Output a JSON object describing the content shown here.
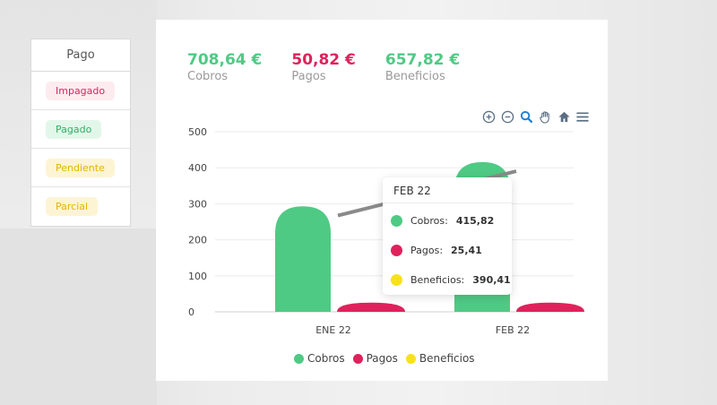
{
  "colors": {
    "green": "#4fca84",
    "red": "#e0225c",
    "yellow": "#f7e21a",
    "line": "#8a8a8a"
  },
  "status": {
    "header": "Pago",
    "items": [
      {
        "label": "Impagado",
        "fg": "#e0225c",
        "bg": "#fdebef"
      },
      {
        "label": "Pagado",
        "fg": "#2fb064",
        "bg": "#e2f7ea"
      },
      {
        "label": "Pendiente",
        "fg": "#e6b400",
        "bg": "#fdf4d4"
      },
      {
        "label": "Parcial",
        "fg": "#e6b400",
        "bg": "#fdf4d4"
      }
    ]
  },
  "kpis": [
    {
      "value": "708,64 €",
      "label": "Cobros",
      "color": "#4fca84"
    },
    {
      "value": "50,82 €",
      "label": "Pagos",
      "color": "#e0225c"
    },
    {
      "value": "657,82 €",
      "label": "Beneficios",
      "color": "#4fca84"
    }
  ],
  "toolbar": [
    "zoom-in-icon",
    "zoom-out-icon",
    "zoom-select-icon",
    "pan-hand-icon",
    "home-icon",
    "menu-icon"
  ],
  "tooltip": {
    "title": "FEB 22",
    "rows": [
      {
        "label": "Cobros:",
        "value": "415,82",
        "color": "#4fca84"
      },
      {
        "label": "Pagos:",
        "value": "25,41",
        "color": "#e0225c"
      },
      {
        "label": "Beneficios:",
        "value": "390,41",
        "color": "#f7e21a"
      }
    ]
  },
  "chart_data": {
    "type": "bar",
    "categories": [
      "ENE 22",
      "FEB 22"
    ],
    "series": [
      {
        "name": "Cobros",
        "type": "bar",
        "values": [
          292.82,
          415.82
        ]
      },
      {
        "name": "Pagos",
        "type": "bar",
        "values": [
          25.41,
          25.41
        ]
      },
      {
        "name": "Beneficios",
        "type": "line",
        "values": [
          267.41,
          390.41
        ]
      }
    ],
    "yticks": [
      0,
      100,
      200,
      300,
      400,
      500
    ],
    "ylim": [
      0,
      500
    ],
    "grid": true,
    "legend": "bottom"
  }
}
